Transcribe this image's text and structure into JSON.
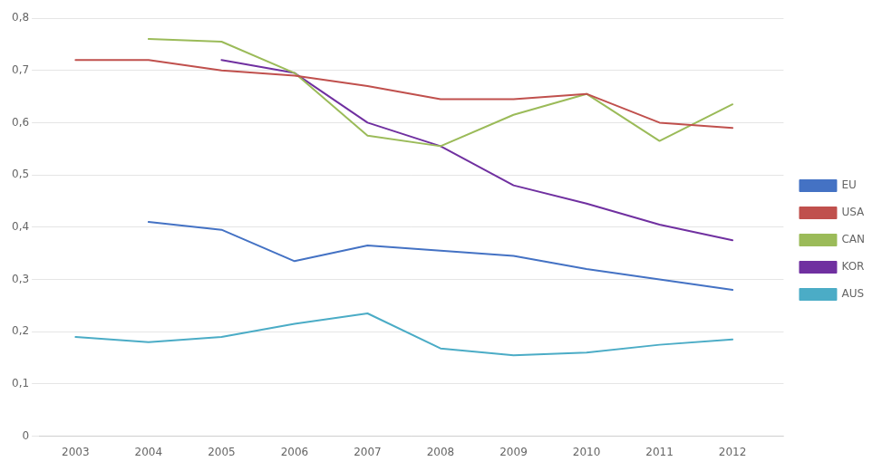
{
  "chart_data": {
    "type": "line",
    "x": [
      2003,
      2004,
      2005,
      2006,
      2007,
      2008,
      2009,
      2010,
      2011,
      2012
    ],
    "series": [
      {
        "name": "EU",
        "color": "#4472C4",
        "values": [
          null,
          0.41,
          0.395,
          0.335,
          0.365,
          0.355,
          0.345,
          0.32,
          0.3,
          0.28
        ]
      },
      {
        "name": "USA",
        "color": "#C0504D",
        "values": [
          0.72,
          0.72,
          0.7,
          0.69,
          0.67,
          0.645,
          0.645,
          0.655,
          0.6,
          0.59
        ]
      },
      {
        "name": "CAN",
        "color": "#9BBB59",
        "values": [
          null,
          0.76,
          0.755,
          0.695,
          0.575,
          0.555,
          0.615,
          0.655,
          0.565,
          0.635
        ]
      },
      {
        "name": "KOR",
        "color": "#7030A0",
        "values": [
          null,
          null,
          0.72,
          0.695,
          0.6,
          0.555,
          0.48,
          0.445,
          0.405,
          0.375
        ]
      },
      {
        "name": "AUS",
        "color": "#4BACC6",
        "values": [
          0.19,
          0.18,
          0.19,
          0.215,
          0.235,
          0.168,
          0.155,
          0.16,
          0.175,
          0.185
        ]
      }
    ],
    "xlim": [
      2002.5,
      2012.7
    ],
    "xticks": [
      2003,
      2004,
      2005,
      2006,
      2007,
      2008,
      2009,
      2010,
      2011,
      2012
    ],
    "ylim": [
      0,
      0.8
    ],
    "yticks": [
      0,
      {
        "value": 0.1,
        "label": "0,1"
      },
      {
        "value": 0.2,
        "label": "0,2"
      },
      {
        "value": 0.3,
        "label": "0,3"
      },
      {
        "value": 0.4,
        "label": "0,4"
      },
      {
        "value": 0.5,
        "label": "0,5"
      },
      {
        "value": 0.6,
        "label": "0,6"
      },
      {
        "value": 0.7,
        "label": "0,7"
      },
      {
        "value": 0.8,
        "label": "0,8"
      }
    ],
    "grid": "y",
    "legend": "right",
    "marker": "none"
  }
}
